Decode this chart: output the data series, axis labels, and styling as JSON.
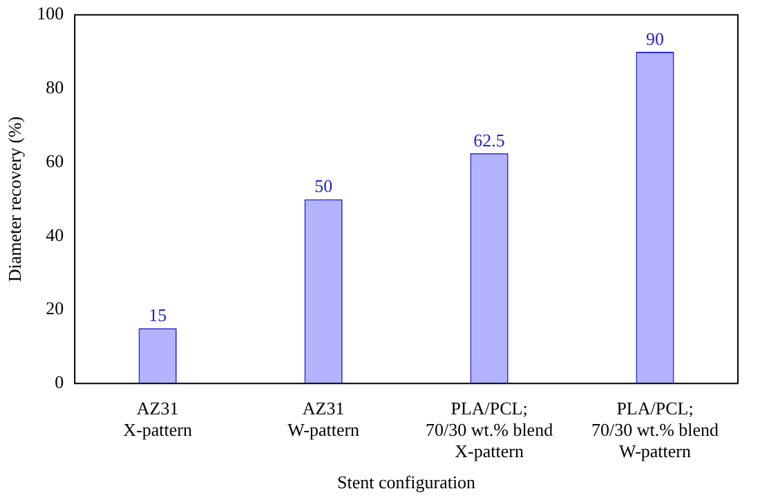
{
  "chart_data": {
    "type": "bar",
    "xlabel": "Stent configuration",
    "ylabel": "Diameter recovery (%)",
    "categories": [
      "AZ31\nX-pattern",
      "AZ31\nW-pattern",
      "PLA/PCL;\n70/30 wt.% blend\nX-pattern",
      "PLA/PCL;\n70/30 wt.% blend\nW-pattern"
    ],
    "values": [
      15,
      50,
      62.5,
      90
    ],
    "color": "#b3b3ff",
    "ylim": [
      0,
      100
    ],
    "yticks": [
      0,
      20,
      40,
      60,
      80,
      100
    ],
    "grid": false,
    "legend": false,
    "data_labels": true
  }
}
